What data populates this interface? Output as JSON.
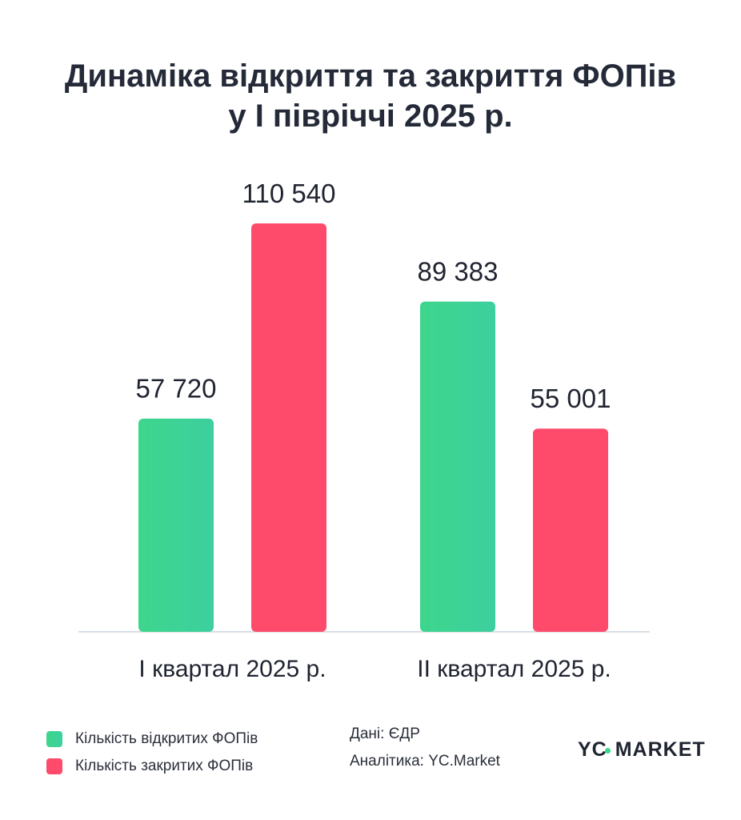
{
  "title_line1": "Динаміка відкриття та закриття ФОПів",
  "title_line2": "у І півріччі 2025 р.",
  "colors": {
    "opened": "#3dd68c",
    "closed": "#ff4b6b",
    "axis": "#d8dde6"
  },
  "chart_data": {
    "type": "bar",
    "title": "Динаміка відкриття та закриття ФОПів у І півріччі 2025 р.",
    "categories": [
      "І квартал 2025 р.",
      "ІІ квартал 2025 р."
    ],
    "series": [
      {
        "name": "Кількість відкритих ФОПів",
        "values": [
          57720,
          89383
        ],
        "labels": [
          "57 720",
          "89 383"
        ]
      },
      {
        "name": "Кількість закритих ФОПів",
        "values": [
          110540,
          55001
        ],
        "labels": [
          "110 540",
          "55 001"
        ]
      }
    ],
    "ylim": [
      0,
      120000
    ],
    "grid": false,
    "legend_position": "bottom-left"
  },
  "legend": {
    "opened": "Кількість відкритих ФОПів",
    "closed": "Кількість закритих ФОПів"
  },
  "sources": {
    "data": "Дані: ЄДР",
    "analytics": "Аналітика: YC.Market"
  },
  "logo": {
    "left": "YC",
    "right": "MARKET"
  }
}
